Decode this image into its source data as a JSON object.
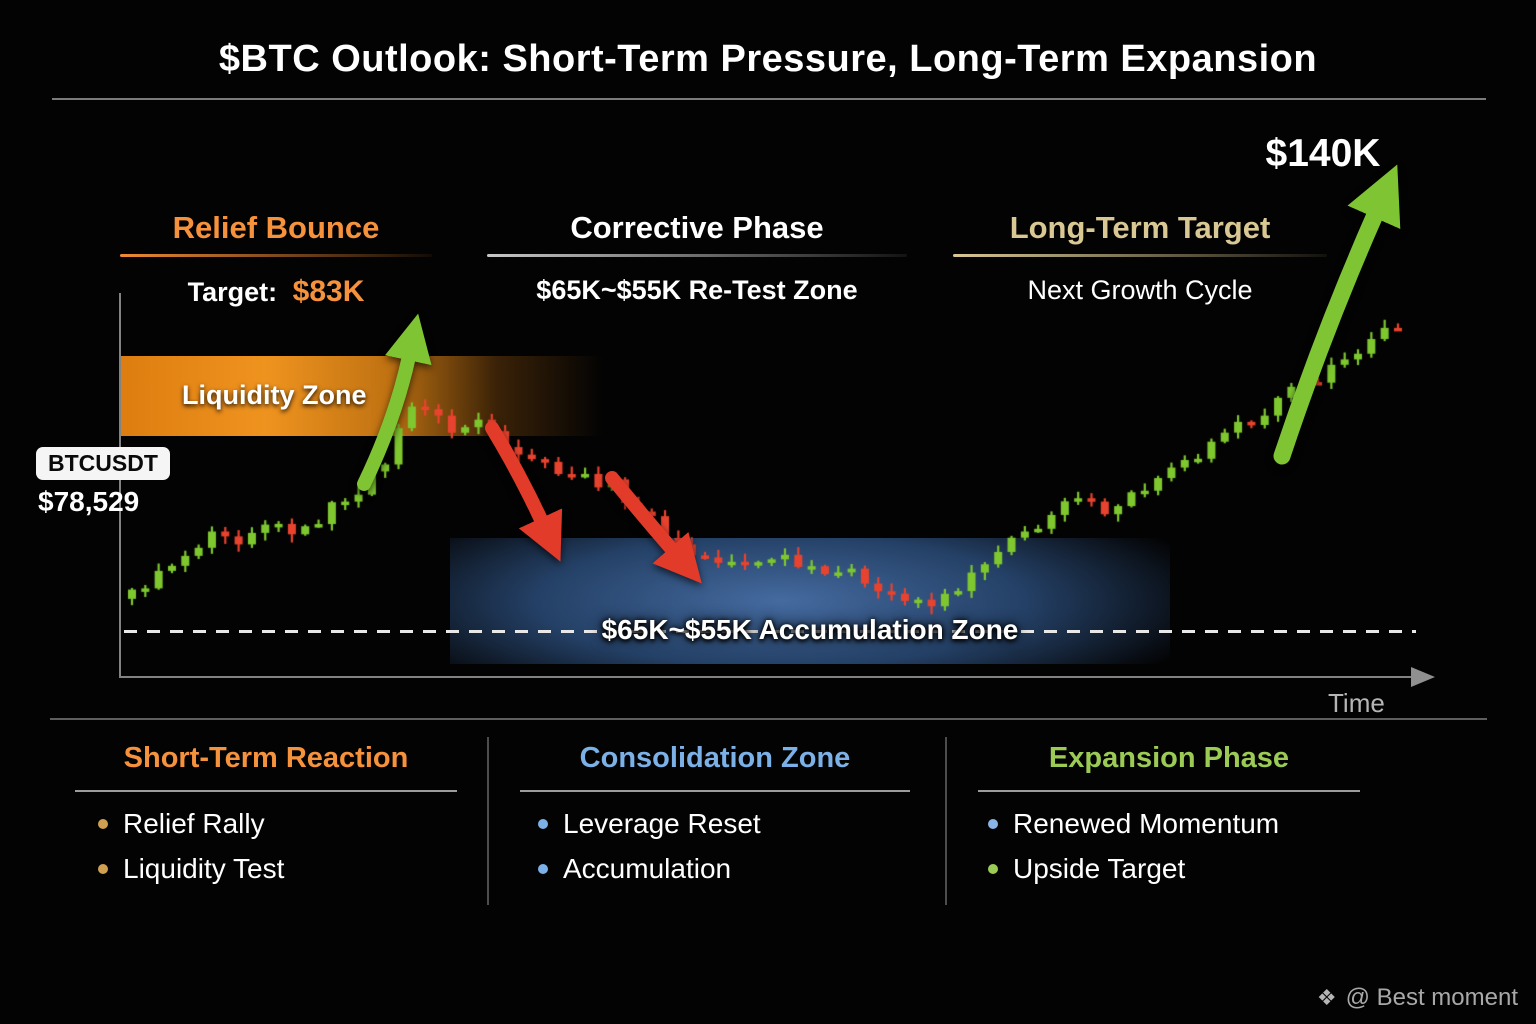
{
  "title": "$BTC Outlook: Short-Term Pressure, Long-Term Expansion",
  "phases": [
    {
      "label": "Relief Bounce",
      "color": "#f6923c",
      "sub_prefix": "Target:",
      "sub_value": "$83K",
      "sub_value_color": "#f6923c"
    },
    {
      "label": "Corrective Phase",
      "color": "#ffffff",
      "sub": "$65K~$55K Re-Test Zone"
    },
    {
      "label": "Long-Term Target",
      "color": "#d9c893",
      "sub": "Next Growth Cycle"
    }
  ],
  "chart": {
    "ticker": "BTCUSDT",
    "current_price_label": "$78,529",
    "liquidity_zone_label": "Liquidity Zone",
    "accumulation_zone_label": "$65K~$55K Accumulation Zone",
    "long_term_target_label": "$140K",
    "time_axis_label": "Time"
  },
  "chart_data": {
    "type": "candlestick",
    "symbol": "BTCUSDT",
    "current_price": 78529,
    "relief_bounce_target": 83000,
    "retest_zone_low": 55000,
    "retest_zone_high": 65000,
    "long_term_target": 140000,
    "candle_up_color": "#7ec72f",
    "candle_down_color": "#e8432e",
    "liquidity_zone_color": "#e8821c",
    "accumulation_zone_color": "#2c4f7e",
    "candle_count": 96,
    "price_path": [
      [
        0.0,
        60500
      ],
      [
        0.02,
        62800
      ],
      [
        0.045,
        64800
      ],
      [
        0.07,
        67800
      ],
      [
        0.09,
        66300
      ],
      [
        0.115,
        69300
      ],
      [
        0.14,
        68000
      ],
      [
        0.165,
        71500
      ],
      [
        0.19,
        73800
      ],
      [
        0.205,
        76500
      ],
      [
        0.228,
        84000
      ],
      [
        0.245,
        81500
      ],
      [
        0.262,
        79800
      ],
      [
        0.278,
        81300
      ],
      [
        0.3,
        78800
      ],
      [
        0.33,
        76300
      ],
      [
        0.36,
        74800
      ],
      [
        0.385,
        73600
      ],
      [
        0.41,
        70300
      ],
      [
        0.44,
        66300
      ],
      [
        0.465,
        64800
      ],
      [
        0.49,
        64200
      ],
      [
        0.515,
        65800
      ],
      [
        0.54,
        64400
      ],
      [
        0.565,
        63800
      ],
      [
        0.59,
        62400
      ],
      [
        0.615,
        60400
      ],
      [
        0.635,
        59400
      ],
      [
        0.655,
        61600
      ],
      [
        0.675,
        63800
      ],
      [
        0.7,
        67000
      ],
      [
        0.725,
        69600
      ],
      [
        0.75,
        72000
      ],
      [
        0.77,
        70800
      ],
      [
        0.795,
        72600
      ],
      [
        0.82,
        74600
      ],
      [
        0.845,
        76800
      ],
      [
        0.87,
        79400
      ],
      [
        0.895,
        82000
      ],
      [
        0.92,
        84400
      ],
      [
        0.945,
        86600
      ],
      [
        0.97,
        89000
      ],
      [
        1.0,
        91800
      ]
    ],
    "annotations": {
      "relief_arrow_color": "#7fc433",
      "corrective_arrow_color": "#e23b2a",
      "expansion_arrow_color": "#7fc433"
    }
  },
  "legend": {
    "columns": [
      {
        "title": "Short-Term Reaction",
        "color": "#f6923c",
        "items": [
          {
            "text": "Relief Rally",
            "dot": "#cfa050"
          },
          {
            "text": "Liquidity Test",
            "dot": "#cfa050"
          }
        ]
      },
      {
        "title": "Consolidation Zone",
        "color": "#7cb1e8",
        "items": [
          {
            "text": "Leverage Reset",
            "dot": "#7cb1e8"
          },
          {
            "text": "Accumulation",
            "dot": "#7cb1e8"
          }
        ]
      },
      {
        "title": "Expansion Phase",
        "color": "#9bcb55",
        "items": [
          {
            "text": "Renewed Momentum",
            "dot": "#8ab4e8"
          },
          {
            "text": "Upside Target",
            "dot": "#9bcb55"
          }
        ]
      }
    ]
  },
  "watermark": {
    "text": "@ Best moment"
  }
}
